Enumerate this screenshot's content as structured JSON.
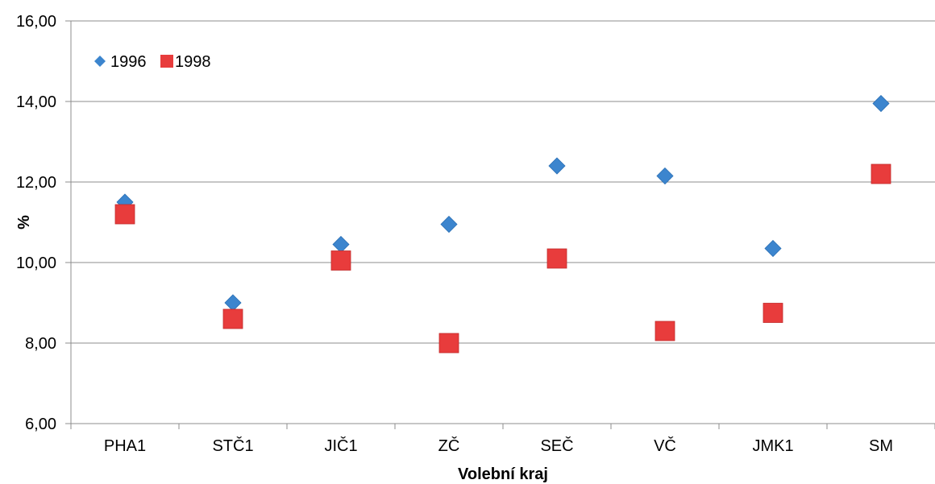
{
  "chart_data": {
    "type": "scatter",
    "title": "",
    "xlabel": "Volební kraj",
    "ylabel": "%",
    "categories": [
      "PHA1",
      "STČ1",
      "JIČ1",
      "ZČ",
      "SEČ",
      "VČ",
      "JMK1",
      "SM"
    ],
    "ylim": [
      6,
      16
    ],
    "yticks": [
      "6,00",
      "8,00",
      "10,00",
      "12,00",
      "14,00",
      "16,00"
    ],
    "grid": true,
    "legend_position": "top-left",
    "series": [
      {
        "name": "1996",
        "marker": "diamond",
        "color": "#3C85CE",
        "values": [
          11.5,
          9.0,
          10.45,
          10.95,
          12.4,
          12.15,
          10.35,
          13.95
        ]
      },
      {
        "name": "1998",
        "marker": "square",
        "color": "#E83C3C",
        "values": [
          11.2,
          8.6,
          10.05,
          8.0,
          10.1,
          8.3,
          8.75,
          12.2
        ]
      }
    ]
  }
}
